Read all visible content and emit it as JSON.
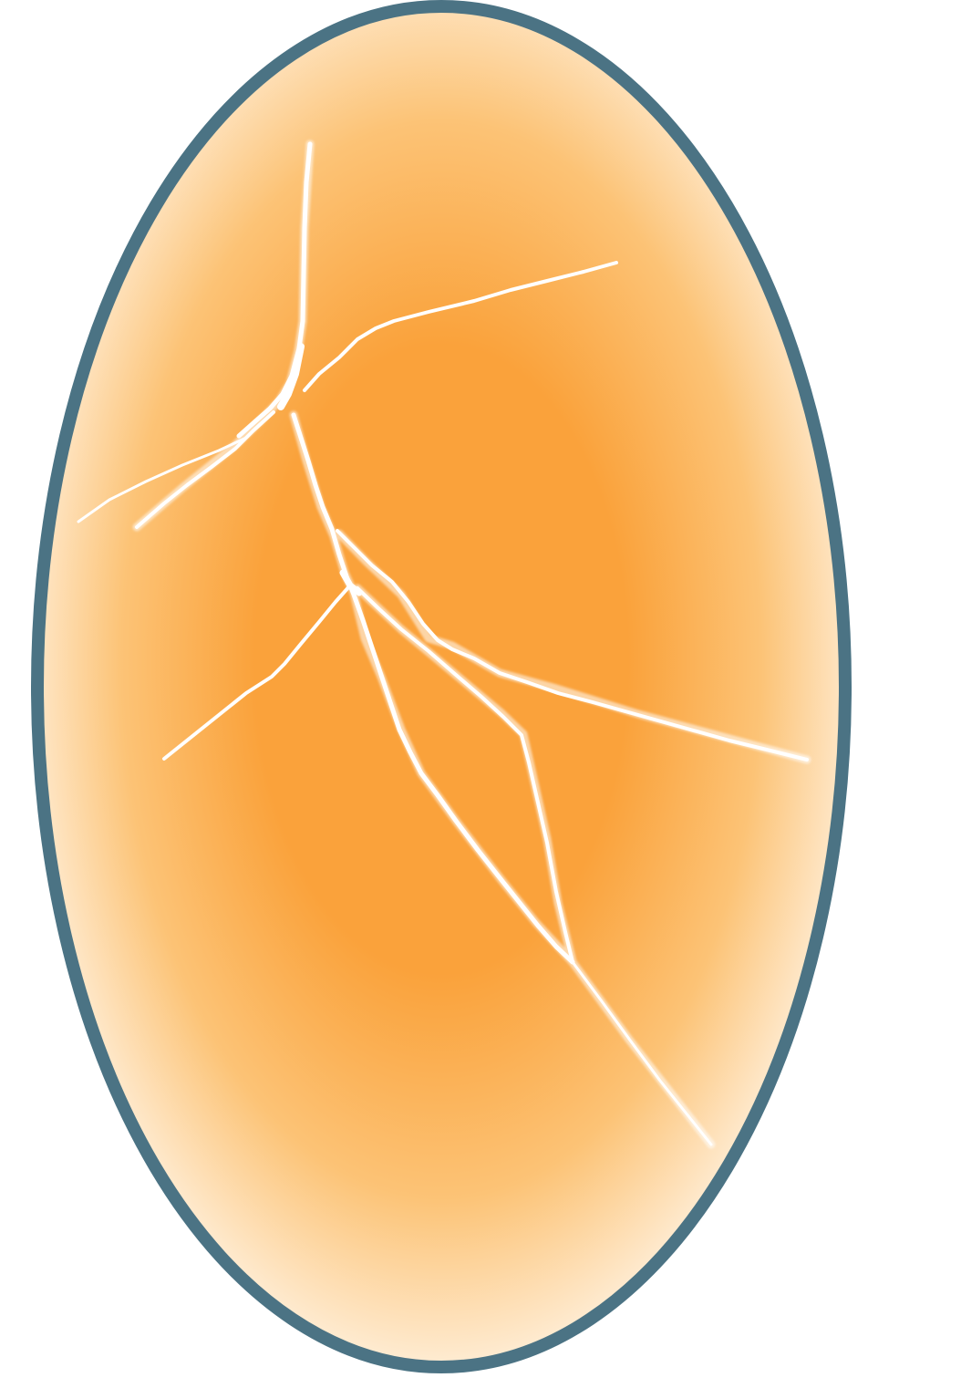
{
  "illustration": {
    "subject": "cracked-egg",
    "colors": {
      "outline": "#4B7384",
      "fill_center": "#FAA23B",
      "fill_mid": "#FCC376",
      "fill_edge": "#FFF6EA",
      "crack": "#FFFFFF",
      "background": "#FFFFFF"
    }
  }
}
